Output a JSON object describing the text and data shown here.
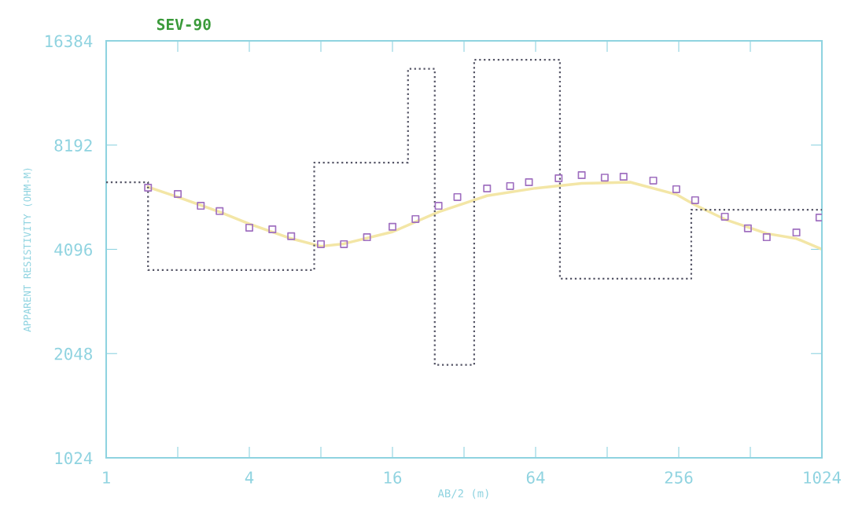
{
  "chart_data": {
    "type": "line",
    "title": "SEV-90",
    "xlabel": "AB/2 (m)",
    "ylabel": "APPARENT RESISTIVITY (OHM-M)",
    "log": "xy",
    "xlim": [
      1,
      1024
    ],
    "xticks": [
      1,
      {
        "value": 2,
        "label": null
      },
      4,
      {
        "value": 8,
        "label": null
      },
      16,
      {
        "value": 32,
        "label": null
      },
      64,
      {
        "value": 128,
        "label": null
      },
      256,
      {
        "value": 512,
        "label": null
      },
      1024
    ],
    "ylim": [
      1024,
      16384
    ],
    "yticks": [
      1024,
      2048,
      4096,
      8192,
      16384
    ],
    "grid": false,
    "series": [
      {
        "type": "step",
        "color": "#555566",
        "line_style": "dotted",
        "x": [
          1,
          1.5,
          7.5,
          18.6,
          24.1,
          35.3,
          81,
          289,
          1024
        ],
        "values": [
          6400,
          3570,
          7290,
          13600,
          1900,
          14450,
          3370,
          5330,
          5330
        ]
      },
      {
        "color": "#f3e6a6",
        "line_style": "solid",
        "x": [
          1.5,
          2,
          3,
          4,
          6,
          8,
          10,
          16,
          25,
          40,
          64,
          100,
          160,
          250,
          300,
          400,
          600,
          800,
          1024
        ],
        "values": [
          6200,
          5800,
          5250,
          4850,
          4400,
          4180,
          4250,
          4600,
          5250,
          5850,
          6150,
          6350,
          6400,
          5900,
          5500,
          5000,
          4550,
          4400,
          4100
        ]
      },
      {
        "type": "scatter",
        "color": "#a070c0",
        "marker": "square",
        "x": [
          1.5,
          2,
          2.5,
          3,
          4,
          5,
          6,
          8,
          10,
          12.5,
          16,
          20,
          25,
          30,
          40,
          50,
          60,
          80,
          100,
          125,
          150,
          200,
          250,
          300,
          400,
          500,
          600,
          800,
          1000
        ],
        "values": [
          6170,
          5920,
          5470,
          5280,
          4730,
          4680,
          4470,
          4240,
          4240,
          4440,
          4760,
          5010,
          5470,
          5800,
          6140,
          6240,
          6400,
          6570,
          6710,
          6600,
          6640,
          6470,
          6110,
          5680,
          5090,
          4710,
          4440,
          4580,
          5060
        ]
      }
    ]
  }
}
